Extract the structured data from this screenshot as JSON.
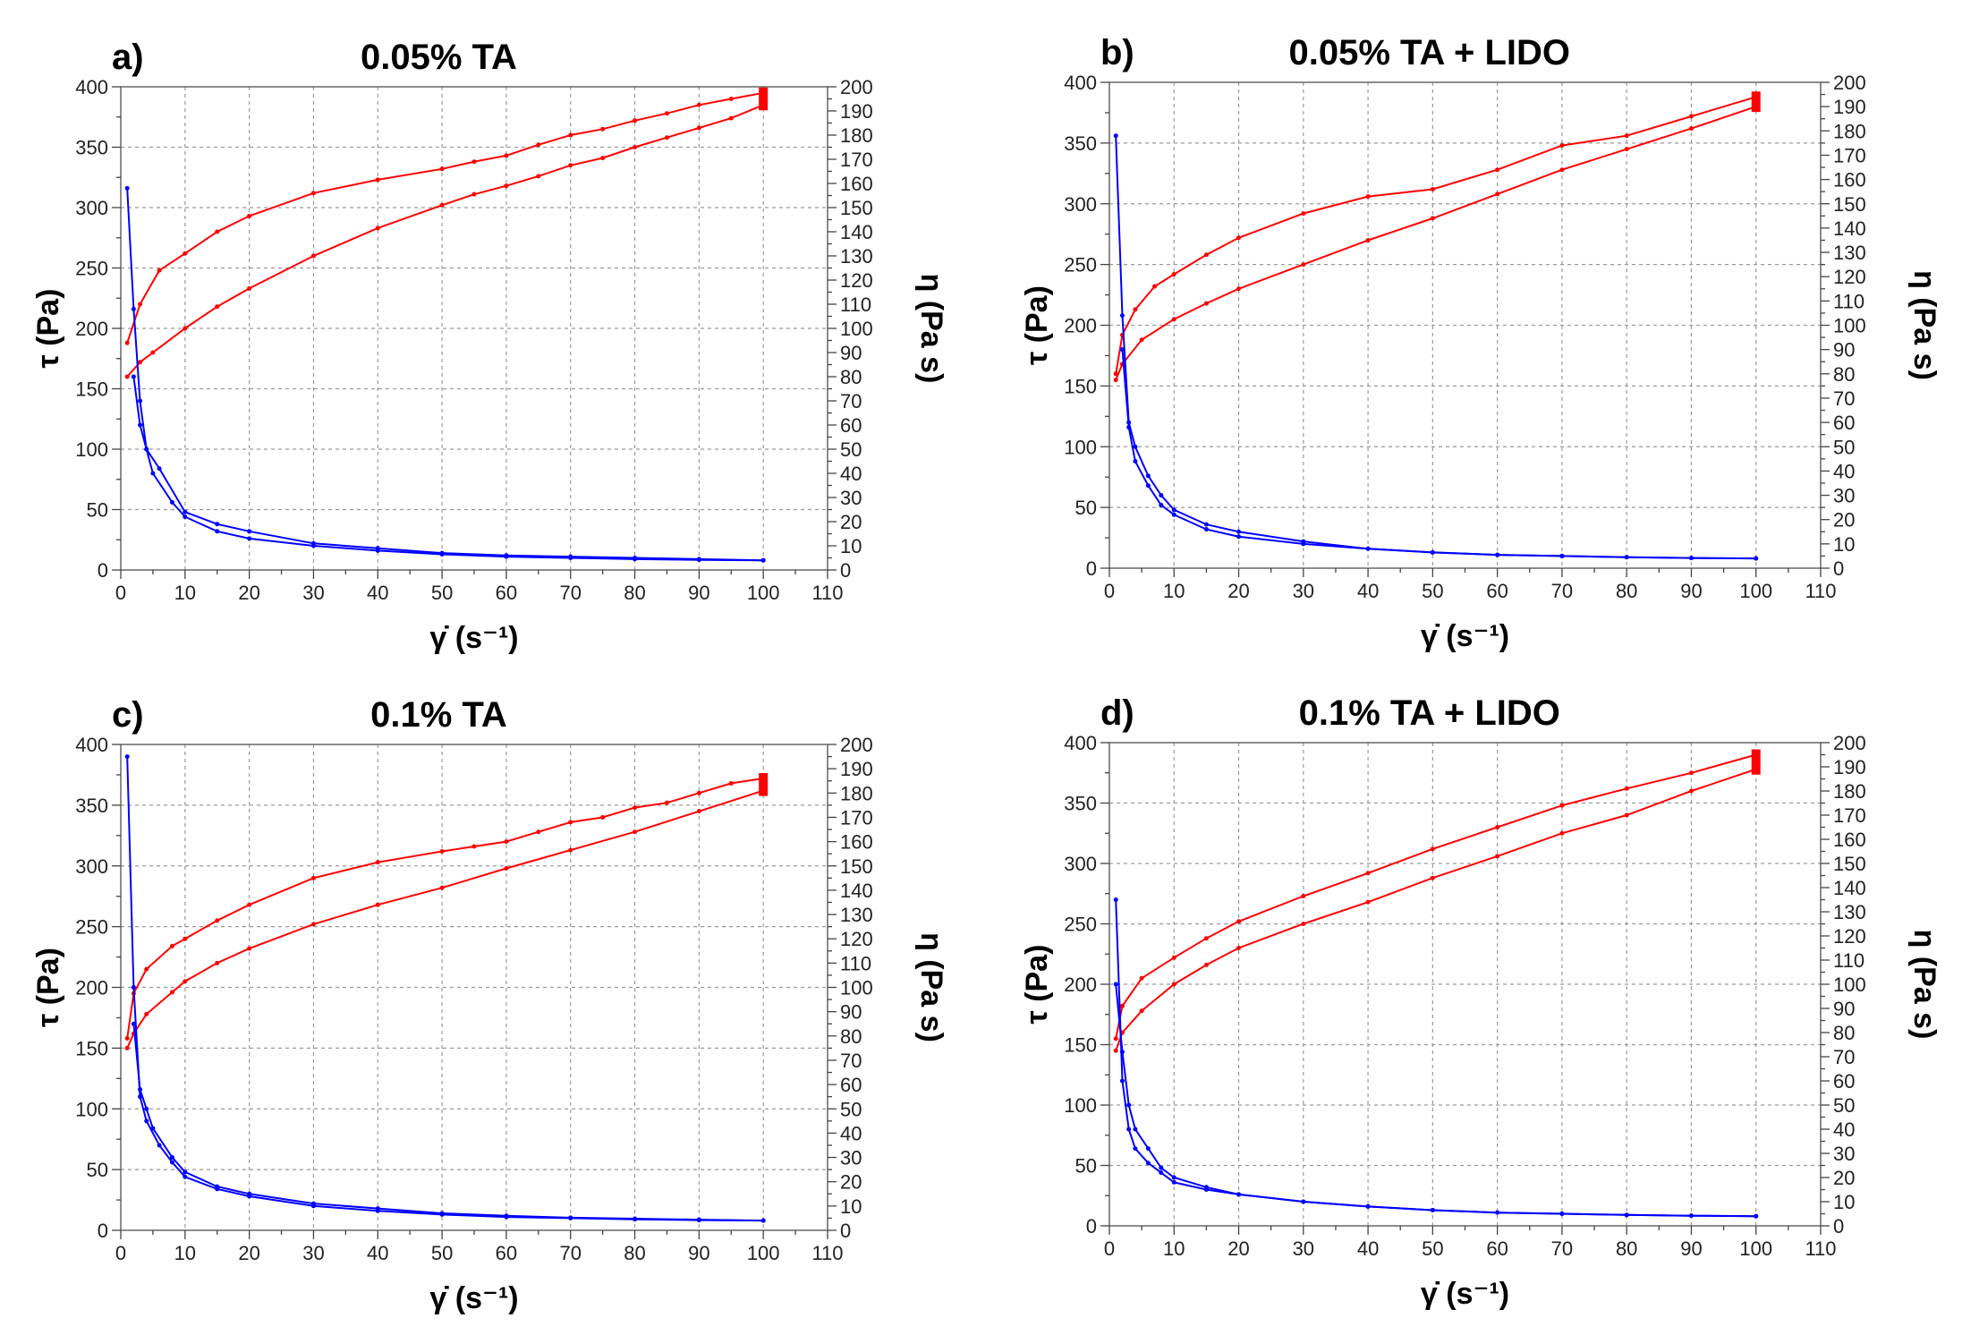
{
  "chart_data": [
    {
      "type": "line",
      "panel_label": "a)",
      "title": "0.05%  TA",
      "xlabel": "γ̇ (s⁻¹)",
      "ylabel": "τ (Pa)",
      "y2label": "η (Pa s)",
      "xlim": [
        0,
        110
      ],
      "ylim": [
        0,
        400
      ],
      "y2lim": [
        0,
        200
      ],
      "x_ticks": [
        "0",
        "10",
        "20",
        "30",
        "40",
        "50",
        "60",
        "70",
        "80",
        "90",
        "100",
        "110"
      ],
      "y_ticks": [
        "0",
        "50",
        "100",
        "150",
        "200",
        "250",
        "300",
        "350",
        "400"
      ],
      "y2_ticks": [
        "0",
        "10",
        "20",
        "30",
        "40",
        "50",
        "60",
        "70",
        "80",
        "90",
        "100",
        "110",
        "120",
        "130",
        "140",
        "150",
        "160",
        "170",
        "180",
        "190",
        "200"
      ],
      "grid": true,
      "colors": {
        "stress": "#ff0000",
        "viscosity": "#0000ff"
      },
      "series": [
        {
          "axis": "left",
          "color": "#ff0000",
          "x": [
            1,
            3,
            6,
            10,
            15,
            20,
            30,
            40,
            50,
            55,
            60,
            65,
            70,
            75,
            80,
            85,
            90,
            95,
            100
          ],
          "y": [
            188,
            220,
            248,
            262,
            280,
            293,
            312,
            323,
            332,
            338,
            343,
            352,
            360,
            365,
            372,
            378,
            385,
            390,
            395
          ]
        },
        {
          "axis": "left",
          "color": "#ff0000",
          "x": [
            1,
            3,
            5,
            10,
            15,
            20,
            30,
            40,
            50,
            55,
            60,
            65,
            70,
            75,
            80,
            85,
            90,
            95,
            100
          ],
          "y": [
            160,
            172,
            180,
            200,
            218,
            233,
            260,
            283,
            302,
            311,
            318,
            326,
            335,
            341,
            350,
            358,
            366,
            374,
            385
          ]
        },
        {
          "axis": "right",
          "color": "#0000ff",
          "x": [
            1,
            2,
            3,
            4,
            6,
            10,
            15,
            20,
            30,
            40,
            50,
            60,
            70,
            80,
            90,
            100
          ],
          "y": [
            158,
            108,
            70,
            50,
            42,
            24,
            19,
            16,
            11,
            9,
            7,
            6,
            5.5,
            5,
            4.5,
            4
          ]
        },
        {
          "axis": "right",
          "color": "#0000ff",
          "x": [
            2,
            3,
            4,
            5,
            8,
            10,
            15,
            20,
            30,
            40,
            50,
            60,
            70,
            80,
            90,
            100
          ],
          "y": [
            80,
            60,
            50,
            40,
            28,
            22,
            16,
            13,
            10,
            8,
            6.5,
            5.5,
            5,
            4.5,
            4.2,
            4
          ]
        }
      ]
    },
    {
      "type": "line",
      "panel_label": "b)",
      "title": "0.05%  TA + LIDO",
      "xlabel": "γ̇ (s⁻¹)",
      "ylabel": "τ (Pa)",
      "y2label": "η (Pa s)",
      "xlim": [
        0,
        110
      ],
      "ylim": [
        0,
        400
      ],
      "y2lim": [
        0,
        200
      ],
      "x_ticks": [
        "0",
        "10",
        "20",
        "30",
        "40",
        "50",
        "60",
        "70",
        "80",
        "90",
        "100",
        "110"
      ],
      "y_ticks": [
        "0",
        "50",
        "100",
        "150",
        "200",
        "250",
        "300",
        "350",
        "400"
      ],
      "y2_ticks": [
        "0",
        "10",
        "20",
        "30",
        "40",
        "50",
        "60",
        "70",
        "80",
        "90",
        "100",
        "110",
        "120",
        "130",
        "140",
        "150",
        "160",
        "170",
        "180",
        "190",
        "200"
      ],
      "grid": true,
      "colors": {
        "stress": "#ff0000",
        "viscosity": "#0000ff"
      },
      "series": [
        {
          "axis": "left",
          "color": "#ff0000",
          "x": [
            1,
            2,
            4,
            7,
            10,
            15,
            20,
            30,
            40,
            50,
            60,
            70,
            80,
            90,
            100
          ],
          "y": [
            160,
            192,
            213,
            232,
            242,
            258,
            272,
            292,
            306,
            312,
            328,
            348,
            356,
            372,
            388
          ]
        },
        {
          "axis": "left",
          "color": "#ff0000",
          "x": [
            1,
            2,
            5,
            10,
            15,
            20,
            30,
            40,
            50,
            60,
            70,
            80,
            90,
            100
          ],
          "y": [
            155,
            168,
            188,
            205,
            218,
            230,
            250,
            270,
            288,
            308,
            328,
            345,
            362,
            380
          ]
        },
        {
          "axis": "right",
          "color": "#0000ff",
          "x": [
            1,
            2,
            3,
            4,
            6,
            8,
            10,
            15,
            20,
            30,
            40,
            50,
            60,
            70,
            80,
            90,
            100
          ],
          "y": [
            178,
            104,
            60,
            50,
            38,
            30,
            24,
            18,
            15,
            11,
            8,
            6.5,
            5.5,
            5,
            4.5,
            4.2,
            4
          ]
        },
        {
          "axis": "right",
          "color": "#0000ff",
          "x": [
            2,
            3,
            4,
            6,
            8,
            10,
            15,
            20,
            30,
            40,
            50,
            60,
            70,
            80,
            90,
            100
          ],
          "y": [
            90,
            58,
            44,
            34,
            26,
            22,
            16,
            13,
            10,
            8,
            6.5,
            5.5,
            5,
            4.5,
            4.2,
            4
          ]
        }
      ]
    },
    {
      "type": "line",
      "panel_label": "c)",
      "title": "0.1%  TA",
      "xlabel": "γ̇ (s⁻¹)",
      "ylabel": "τ (Pa)",
      "y2label": "η (Pa s)",
      "xlim": [
        0,
        110
      ],
      "ylim": [
        0,
        400
      ],
      "y2lim": [
        0,
        200
      ],
      "x_ticks": [
        "0",
        "10",
        "20",
        "30",
        "40",
        "50",
        "60",
        "70",
        "80",
        "90",
        "100",
        "110"
      ],
      "y_ticks": [
        "0",
        "50",
        "100",
        "150",
        "200",
        "250",
        "300",
        "350",
        "400"
      ],
      "y2_ticks": [
        "0",
        "10",
        "20",
        "30",
        "40",
        "50",
        "60",
        "70",
        "80",
        "90",
        "100",
        "110",
        "120",
        "130",
        "140",
        "150",
        "160",
        "170",
        "180",
        "190",
        "200"
      ],
      "grid": true,
      "colors": {
        "stress": "#ff0000",
        "viscosity": "#0000ff"
      },
      "series": [
        {
          "axis": "left",
          "color": "#ff0000",
          "x": [
            1,
            2,
            4,
            8,
            10,
            15,
            20,
            30,
            40,
            50,
            55,
            60,
            65,
            70,
            75,
            80,
            85,
            90,
            95,
            100
          ],
          "y": [
            158,
            195,
            215,
            234,
            240,
            255,
            268,
            290,
            303,
            312,
            316,
            320,
            328,
            336,
            340,
            348,
            352,
            360,
            368,
            372
          ]
        },
        {
          "axis": "left",
          "color": "#ff0000",
          "x": [
            1,
            2,
            4,
            8,
            10,
            15,
            20,
            30,
            40,
            50,
            60,
            70,
            80,
            90,
            100
          ],
          "y": [
            150,
            162,
            178,
            196,
            205,
            220,
            232,
            252,
            268,
            282,
            298,
            313,
            328,
            345,
            362
          ]
        },
        {
          "axis": "right",
          "color": "#0000ff",
          "x": [
            1,
            2,
            3,
            4,
            6,
            8,
            10,
            15,
            20,
            30,
            40,
            50,
            60,
            70,
            80,
            90,
            100
          ],
          "y": [
            195,
            100,
            55,
            45,
            35,
            28,
            22,
            17,
            14,
            10,
            8,
            6.5,
            5.5,
            5,
            4.5,
            4.2,
            4
          ]
        },
        {
          "axis": "right",
          "color": "#0000ff",
          "x": [
            2,
            3,
            4,
            5,
            8,
            10,
            15,
            20,
            30,
            40,
            50,
            60,
            70,
            80,
            90,
            100
          ],
          "y": [
            85,
            58,
            50,
            42,
            30,
            24,
            18,
            15,
            11,
            9,
            7,
            6,
            5.2,
            4.8,
            4.4,
            4
          ]
        }
      ]
    },
    {
      "type": "line",
      "panel_label": "d)",
      "title": "0.1%  TA + LIDO",
      "xlabel": "γ̇ (s⁻¹)",
      "ylabel": "τ (Pa)",
      "y2label": "η (Pa s)",
      "xlim": [
        0,
        110
      ],
      "ylim": [
        0,
        400
      ],
      "y2lim": [
        0,
        200
      ],
      "x_ticks": [
        "0",
        "10",
        "20",
        "30",
        "40",
        "50",
        "60",
        "70",
        "80",
        "90",
        "100",
        "110"
      ],
      "y_ticks": [
        "0",
        "50",
        "100",
        "150",
        "200",
        "250",
        "300",
        "350",
        "400"
      ],
      "y2_ticks": [
        "0",
        "10",
        "20",
        "30",
        "40",
        "50",
        "60",
        "70",
        "80",
        "90",
        "100",
        "110",
        "120",
        "130",
        "140",
        "150",
        "160",
        "170",
        "180",
        "190",
        "200"
      ],
      "grid": true,
      "colors": {
        "stress": "#ff0000",
        "viscosity": "#0000ff"
      },
      "series": [
        {
          "axis": "left",
          "color": "#ff0000",
          "x": [
            1,
            2,
            5,
            10,
            15,
            20,
            30,
            40,
            50,
            60,
            70,
            80,
            90,
            100
          ],
          "y": [
            155,
            182,
            205,
            222,
            238,
            252,
            273,
            292,
            312,
            330,
            348,
            362,
            375,
            390
          ]
        },
        {
          "axis": "left",
          "color": "#ff0000",
          "x": [
            1,
            2,
            5,
            10,
            15,
            20,
            30,
            40,
            50,
            60,
            70,
            80,
            90,
            100
          ],
          "y": [
            145,
            160,
            178,
            200,
            216,
            230,
            250,
            268,
            288,
            306,
            325,
            340,
            360,
            378
          ]
        },
        {
          "axis": "right",
          "color": "#0000ff",
          "x": [
            1,
            2,
            3,
            4,
            6,
            8,
            10,
            15,
            20,
            30,
            40,
            50,
            60,
            70,
            80,
            90,
            100
          ],
          "y": [
            135,
            60,
            40,
            32,
            26,
            22,
            18,
            15,
            13,
            10,
            8,
            6.5,
            5.5,
            5,
            4.5,
            4.2,
            4
          ]
        },
        {
          "axis": "right",
          "color": "#0000ff",
          "x": [
            1,
            2,
            3,
            4,
            6,
            8,
            10,
            15,
            20,
            30,
            40,
            50,
            60,
            70,
            80,
            90,
            100
          ],
          "y": [
            100,
            72,
            50,
            40,
            32,
            24,
            20,
            16,
            13,
            10,
            8,
            6.5,
            5.5,
            5,
            4.5,
            4.2,
            4
          ]
        }
      ]
    }
  ]
}
